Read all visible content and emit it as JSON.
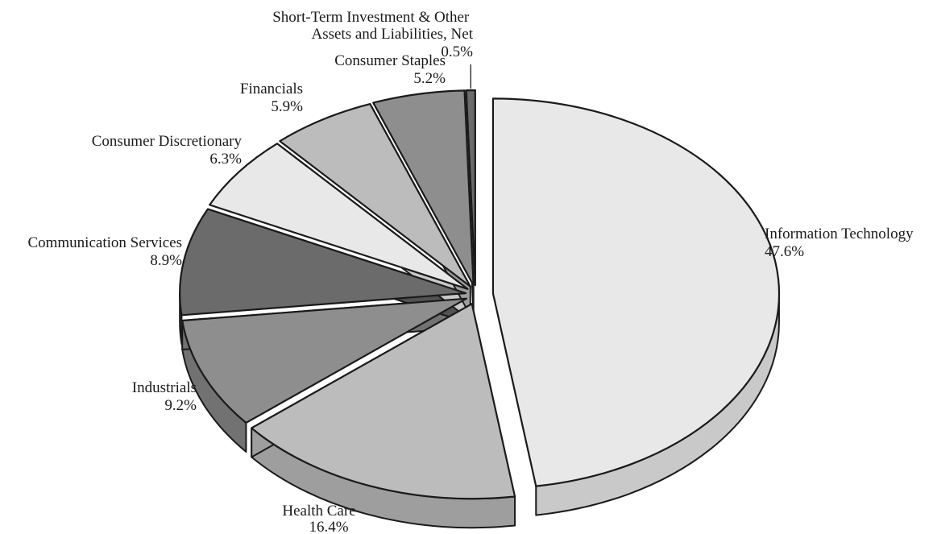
{
  "chart_data": {
    "type": "pie",
    "style": "3d-exploded",
    "title": "",
    "slices": [
      {
        "name": "Information Technology",
        "value": 47.6,
        "display": "47.6%",
        "color": "#e8e8e8",
        "side_color": "#c9c9c9"
      },
      {
        "name": "Health Care",
        "value": 16.4,
        "display": "16.4%",
        "color": "#bcbcbc",
        "side_color": "#9e9e9e"
      },
      {
        "name": "Industrials",
        "value": 9.2,
        "display": "9.2%",
        "color": "#8e8e8e",
        "side_color": "#727272"
      },
      {
        "name": "Communication Services",
        "value": 8.9,
        "display": "8.9%",
        "color": "#6b6b6b",
        "side_color": "#525252"
      },
      {
        "name": "Consumer Discretionary",
        "value": 6.3,
        "display": "6.3%",
        "color": "#e8e8e8",
        "side_color": "#c9c9c9"
      },
      {
        "name": "Financials",
        "value": 5.9,
        "display": "5.9%",
        "color": "#bcbcbc",
        "side_color": "#9e9e9e"
      },
      {
        "name": "Consumer Staples",
        "value": 5.2,
        "display": "5.2%",
        "color": "#8e8e8e",
        "side_color": "#727272"
      },
      {
        "name": "Short-Term Investment & Other Assets and Liabilities, Net",
        "value": 0.5,
        "display": "0.5%",
        "color": "#6b6b6b",
        "side_color": "#525252"
      }
    ]
  }
}
